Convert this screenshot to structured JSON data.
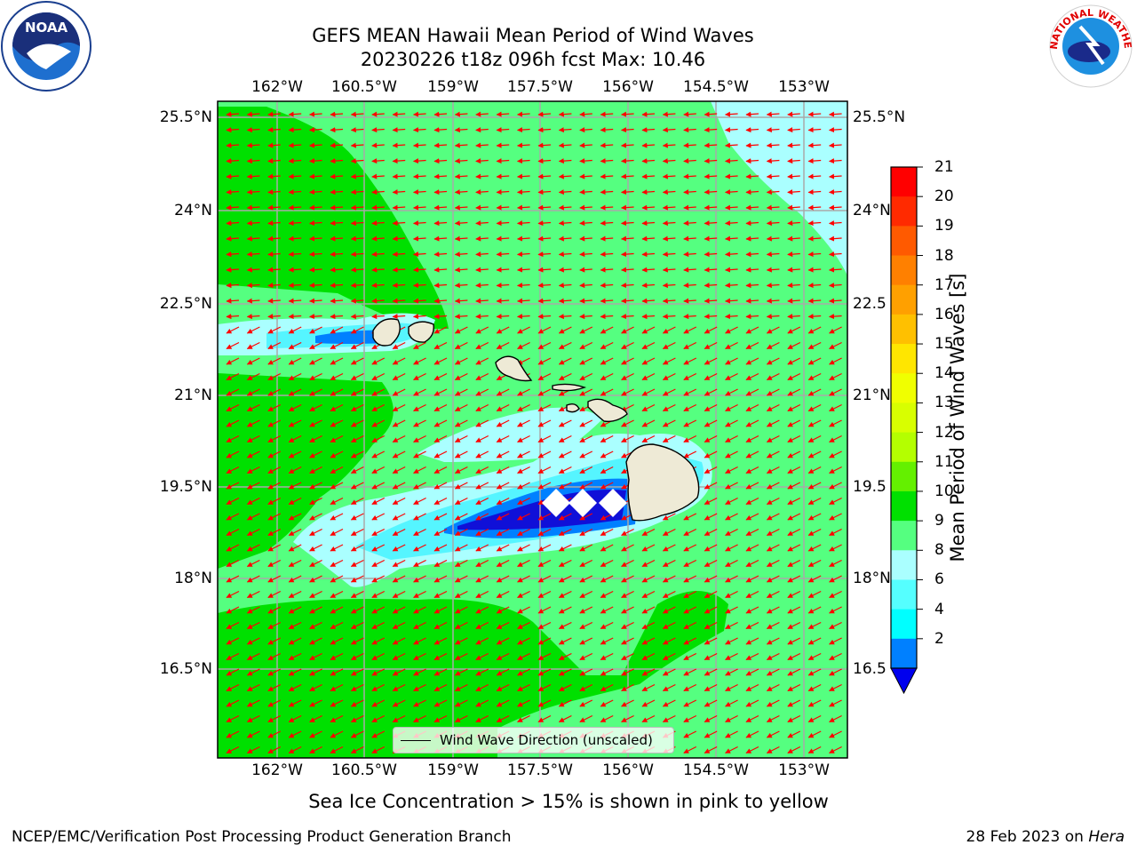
{
  "title": {
    "line1": "GEFS MEAN Hawaii Mean Period of Wind Waves",
    "line2": "20230226 t18z 096h fcst   Max: 10.46"
  },
  "lon_labels": [
    "162°W",
    "160.5°W",
    "159°W",
    "157.5°W",
    "156°W",
    "154.5°W",
    "153°W"
  ],
  "lat_labels": [
    "25.5°N",
    "24°N",
    "22.5°N",
    "21°N",
    "19.5°N",
    "18°N",
    "16.5°N"
  ],
  "lat_labels_right": [
    "25.5°N",
    "24°N",
    "22.5",
    "21°N",
    "19.5",
    "18°N",
    "16.5"
  ],
  "legend": {
    "label": "Wind Wave Direction (unscaled)"
  },
  "colorbar": {
    "label": "Mean Period of Wind Waves [s]",
    "ticks": [
      "21",
      "20",
      "19",
      "18",
      "17",
      "16",
      "15",
      "14",
      "13",
      "12",
      "11",
      "10",
      "9",
      "8",
      "6",
      "4",
      "2"
    ],
    "colors": [
      "#ff0000",
      "#ff2a00",
      "#ff5a00",
      "#ff8000",
      "#ffa000",
      "#ffc000",
      "#ffe600",
      "#f0ff00",
      "#d8ff00",
      "#b4ff00",
      "#64f000",
      "#00e000",
      "#55ff80",
      "#aaffff",
      "#55ffff",
      "#00ffff",
      "#0080ff"
    ]
  },
  "colors": {
    "green_10_11": "#00e000",
    "lightgreen_9_10": "#55ff80",
    "paleblue_8_9": "#aaffff",
    "cyan_6_8": "#55f5ff",
    "blue_2_4": "#0080ff",
    "navy": "#0000dd",
    "land": "#eeead6",
    "arrow": "#ff0000",
    "grid": "#a9a9a9"
  },
  "footer": {
    "note": "Sea Ice Concentration > 15% is shown in pink to yellow",
    "credit_left": "NCEP/EMC/Verification Post Processing Product Generation Branch",
    "credit_date": "28 Feb 2023 on ",
    "credit_machine": "Hera"
  },
  "logos": {
    "left": "noaa-logo",
    "right": "nws-logo",
    "nws_text": "NATIONAL WEATHER SERVICE"
  }
}
